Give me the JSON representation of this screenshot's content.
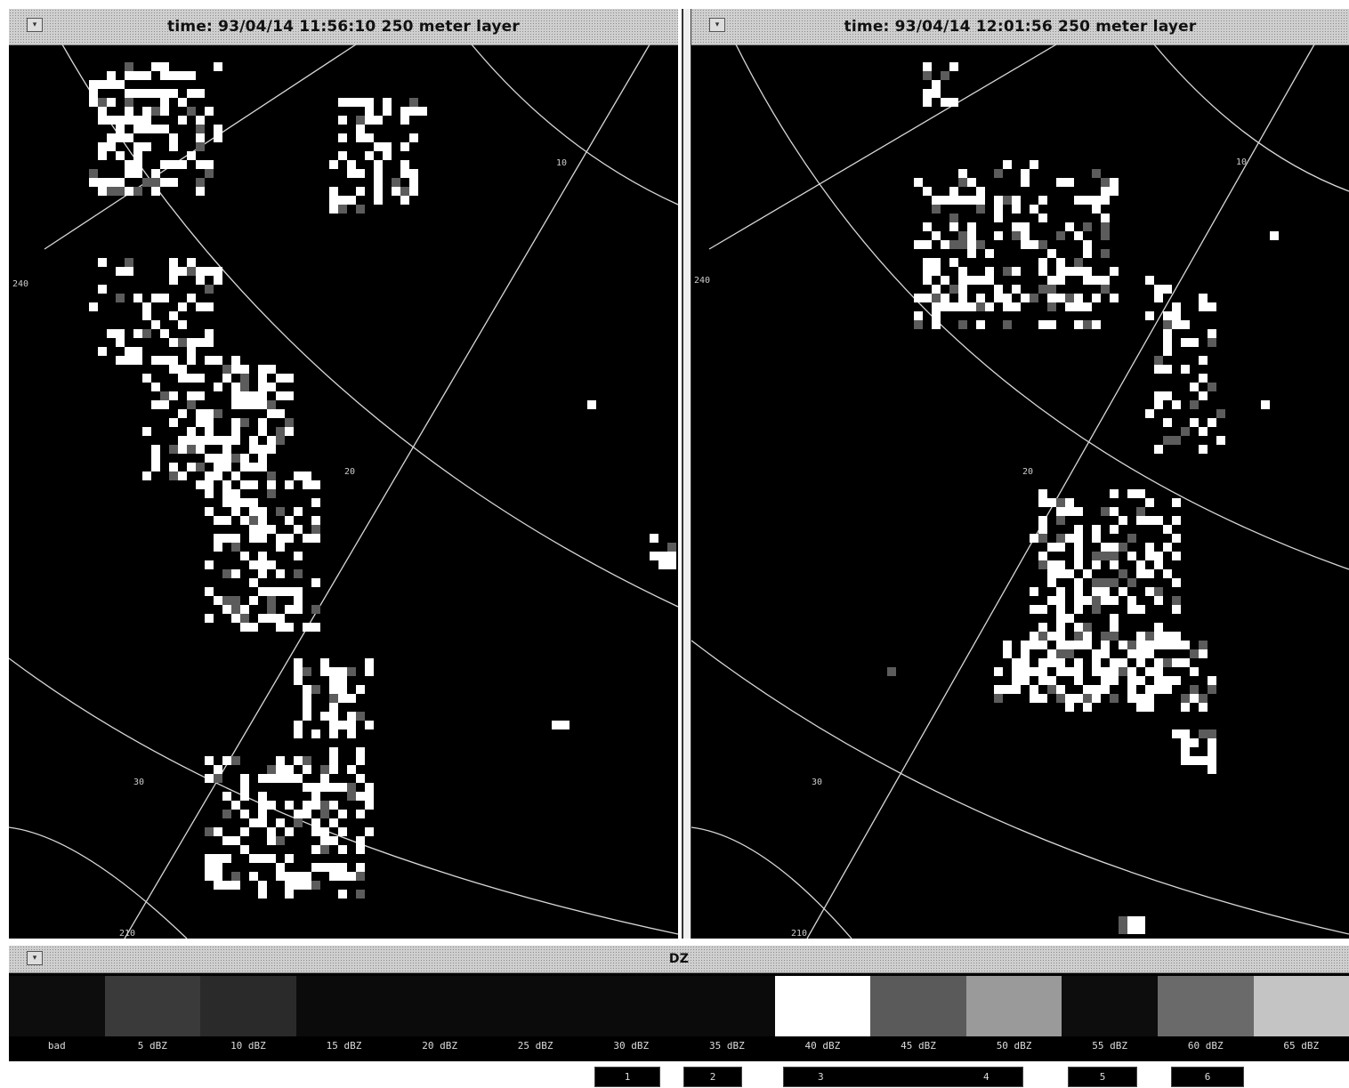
{
  "left_panel": {
    "title": "time: 93/04/14 11:56:10 250 meter layer",
    "range_labels": [
      "10",
      "20",
      "30"
    ],
    "azimuth_labels": [
      "240",
      "210"
    ]
  },
  "right_panel": {
    "title": "time: 93/04/14 12:01:56 250 meter layer",
    "range_labels": [
      "10",
      "20",
      "30"
    ],
    "azimuth_labels": [
      "240",
      "210"
    ]
  },
  "colorbar": {
    "title": "DZ",
    "bins": [
      {
        "label": "bad",
        "color": "#0d0d0d"
      },
      {
        "label": "5 dBZ",
        "color": "#3a3a3a"
      },
      {
        "label": "10 dBZ",
        "color": "#2a2a2a"
      },
      {
        "label": "15 dBZ",
        "color": "#0b0b0b"
      },
      {
        "label": "20 dBZ",
        "color": "#0b0b0b"
      },
      {
        "label": "25 dBZ",
        "color": "#0b0b0b"
      },
      {
        "label": "30 dBZ",
        "color": "#0b0b0b"
      },
      {
        "label": "35 dBZ",
        "color": "#0b0b0b"
      },
      {
        "label": "40 dBZ",
        "color": "#ffffff"
      },
      {
        "label": "45 dBZ",
        "color": "#5a5a5a"
      },
      {
        "label": "50 dBZ",
        "color": "#9a9a9a"
      },
      {
        "label": "55 dBZ",
        "color": "#0d0d0d"
      },
      {
        "label": "60 dBZ",
        "color": "#6a6a6a"
      },
      {
        "label": "65 dBZ",
        "color": "#c4c4c4"
      }
    ]
  },
  "buttons": [
    "1",
    "2",
    "3",
    "4",
    "5",
    "6"
  ],
  "colors": {
    "echo": "#ffffff",
    "echo_mid": "#5c5c5c",
    "grid": "#d8d8d8",
    "background": "#000000"
  }
}
